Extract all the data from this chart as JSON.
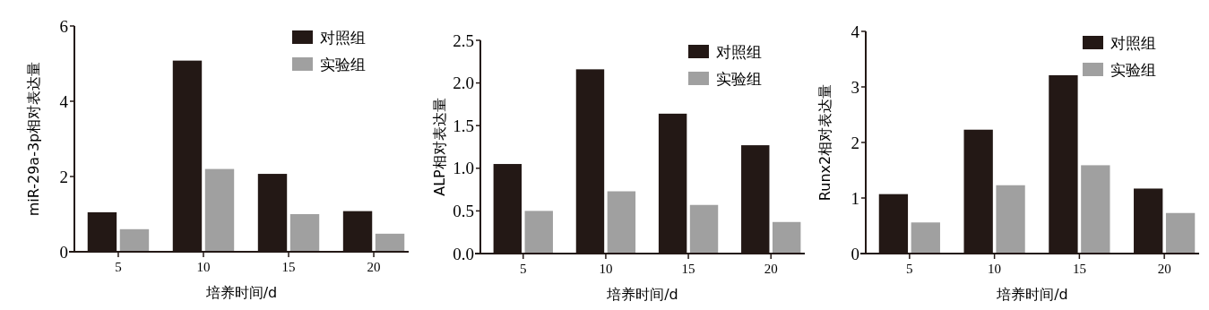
{
  "chart_data": [
    {
      "type": "bar",
      "categories": [
        "5",
        "10",
        "15",
        "20"
      ],
      "xlabel": "培养时间/d",
      "ylabel": "miR-29a-3p相对表达量",
      "ylim": [
        0,
        6
      ],
      "yticks": [
        0,
        2,
        4,
        6
      ],
      "legend": "top right",
      "series": [
        {
          "name": "对照组",
          "color": "#231815",
          "values": [
            1.05,
            5.08,
            2.07,
            1.08
          ]
        },
        {
          "name": "实验组",
          "color": "#a0a0a0",
          "values": [
            0.6,
            2.2,
            1.0,
            0.48
          ]
        }
      ]
    },
    {
      "type": "bar",
      "categories": [
        "5",
        "10",
        "15",
        "20"
      ],
      "xlabel": "培养时间/d",
      "ylabel": "ALP相对表达量",
      "ylim": [
        0,
        2.5
      ],
      "yticks": [
        {
          "value": 0,
          "label": "0.0"
        },
        {
          "value": 0.5,
          "label": "0.5"
        },
        {
          "value": 1,
          "label": "1.0"
        },
        {
          "value": 1.5,
          "label": "1.5"
        },
        {
          "value": 2,
          "label": "2.0"
        },
        {
          "value": 2.5,
          "label": "2.5"
        }
      ],
      "legend": "top right",
      "series": [
        {
          "name": "对照组",
          "color": "#231815",
          "values": [
            1.05,
            2.16,
            1.64,
            1.27
          ]
        },
        {
          "name": "实验组",
          "color": "#a0a0a0",
          "values": [
            0.5,
            0.73,
            0.57,
            0.37
          ]
        }
      ]
    },
    {
      "type": "bar",
      "categories": [
        "5",
        "10",
        "15",
        "20"
      ],
      "xlabel": "培养时间/d",
      "ylabel": "Runx2相对表达量",
      "ylim": [
        0,
        4
      ],
      "yticks": [
        0,
        1,
        2,
        3,
        4
      ],
      "legend": "top right",
      "series": [
        {
          "name": "对照组",
          "color": "#231815",
          "values": [
            1.07,
            2.23,
            3.21,
            1.17
          ]
        },
        {
          "name": "实验组",
          "color": "#a0a0a0",
          "values": [
            0.56,
            1.23,
            1.59,
            0.73
          ]
        }
      ]
    }
  ]
}
